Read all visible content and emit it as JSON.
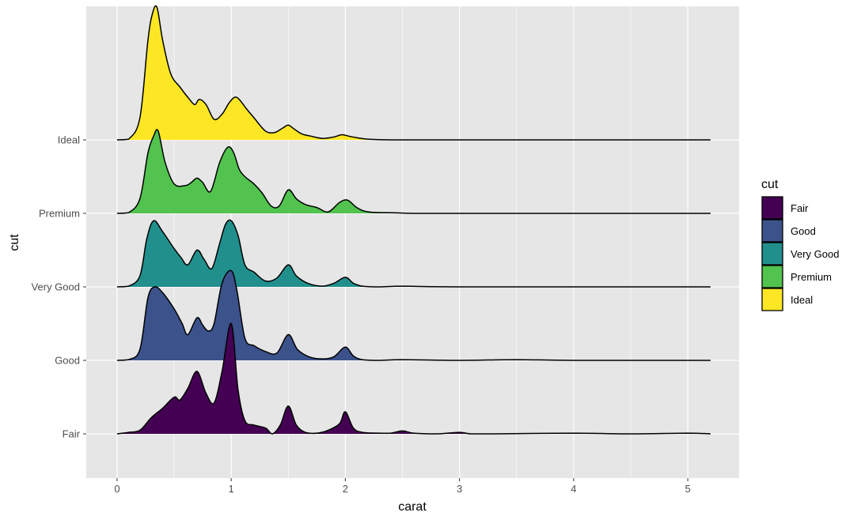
{
  "chart_data": {
    "type": "ridgeline",
    "title": "",
    "xlabel": "carat",
    "ylabel": "cut",
    "xlim": [
      -0.27,
      5.45
    ],
    "x_ticks": [
      0,
      1,
      2,
      3,
      4,
      5
    ],
    "x_tick_labels": [
      "0",
      "1",
      "2",
      "3",
      "4",
      "5"
    ],
    "categories": [
      "Fair",
      "Good",
      "Very Good",
      "Premium",
      "Ideal"
    ],
    "grid": true,
    "panel_background": "#e6e6e6",
    "grid_color": "#ffffff",
    "outline_color": "#000000",
    "legend": {
      "title": "cut",
      "position": "right",
      "entries": [
        "Fair",
        "Good",
        "Very Good",
        "Premium",
        "Ideal"
      ]
    },
    "series": [
      {
        "name": "Fair",
        "color": "#440154",
        "x": [
          0.0,
          0.1,
          0.2,
          0.3,
          0.4,
          0.5,
          0.55,
          0.62,
          0.7,
          0.78,
          0.85,
          0.92,
          1.0,
          1.06,
          1.12,
          1.2,
          1.3,
          1.36,
          1.43,
          1.5,
          1.57,
          1.65,
          1.75,
          1.85,
          1.95,
          2.0,
          2.07,
          2.15,
          2.3,
          2.4,
          2.5,
          2.6,
          2.8,
          3.0,
          3.1,
          3.3,
          4.0,
          4.5,
          5.0,
          5.2
        ],
        "density": [
          0.0,
          0.02,
          0.05,
          0.22,
          0.35,
          0.5,
          0.46,
          0.62,
          0.85,
          0.55,
          0.42,
          0.85,
          1.5,
          0.6,
          0.18,
          0.12,
          0.08,
          0.0,
          0.12,
          0.38,
          0.12,
          0.02,
          0.01,
          0.05,
          0.14,
          0.3,
          0.08,
          0.02,
          0.01,
          0.01,
          0.04,
          0.01,
          0.0,
          0.02,
          0.0,
          0.0,
          0.01,
          0.0,
          0.01,
          0.0
        ]
      },
      {
        "name": "Good",
        "color": "#3b528b",
        "x": [
          0.0,
          0.1,
          0.2,
          0.27,
          0.33,
          0.4,
          0.5,
          0.57,
          0.62,
          0.7,
          0.75,
          0.8,
          0.85,
          0.92,
          1.0,
          1.05,
          1.12,
          1.2,
          1.3,
          1.4,
          1.5,
          1.58,
          1.68,
          1.8,
          1.9,
          2.0,
          2.07,
          2.15,
          2.3,
          2.5,
          3.0,
          3.5,
          4.0,
          5.2
        ],
        "density": [
          0.0,
          0.01,
          0.15,
          0.85,
          1.0,
          0.92,
          0.7,
          0.5,
          0.35,
          0.58,
          0.48,
          0.4,
          0.5,
          1.05,
          1.22,
          0.95,
          0.3,
          0.2,
          0.12,
          0.1,
          0.35,
          0.15,
          0.05,
          0.02,
          0.05,
          0.18,
          0.06,
          0.01,
          0.0,
          0.01,
          0.0,
          0.01,
          0.0,
          0.0
        ]
      },
      {
        "name": "Very Good",
        "color": "#21908d",
        "x": [
          0.0,
          0.1,
          0.2,
          0.26,
          0.32,
          0.4,
          0.5,
          0.56,
          0.62,
          0.7,
          0.76,
          0.83,
          0.9,
          0.95,
          1.0,
          1.06,
          1.12,
          1.2,
          1.3,
          1.4,
          1.5,
          1.57,
          1.67,
          1.8,
          1.9,
          2.0,
          2.07,
          2.15,
          2.3,
          2.5,
          3.0,
          5.2
        ],
        "density": [
          0.0,
          0.01,
          0.15,
          0.65,
          0.9,
          0.75,
          0.52,
          0.4,
          0.3,
          0.5,
          0.38,
          0.25,
          0.6,
          0.85,
          0.9,
          0.7,
          0.3,
          0.2,
          0.08,
          0.12,
          0.3,
          0.15,
          0.05,
          0.01,
          0.05,
          0.13,
          0.05,
          0.01,
          0.0,
          0.01,
          0.0,
          0.0
        ]
      },
      {
        "name": "Premium",
        "color": "#51c34e",
        "x": [
          0.0,
          0.1,
          0.2,
          0.27,
          0.32,
          0.36,
          0.42,
          0.5,
          0.6,
          0.65,
          0.7,
          0.75,
          0.82,
          0.9,
          0.97,
          1.02,
          1.07,
          1.12,
          1.2,
          1.27,
          1.35,
          1.42,
          1.5,
          1.57,
          1.65,
          1.75,
          1.85,
          1.95,
          2.02,
          2.1,
          2.2,
          2.4,
          2.6,
          3.0,
          5.2
        ],
        "density": [
          0.0,
          0.01,
          0.2,
          0.82,
          1.05,
          1.12,
          0.7,
          0.4,
          0.38,
          0.42,
          0.48,
          0.42,
          0.3,
          0.7,
          0.9,
          0.83,
          0.6,
          0.5,
          0.4,
          0.28,
          0.1,
          0.1,
          0.32,
          0.2,
          0.12,
          0.08,
          0.02,
          0.15,
          0.18,
          0.08,
          0.02,
          0.01,
          0.0,
          0.0,
          0.0
        ]
      },
      {
        "name": "Ideal",
        "color": "#fde725",
        "x": [
          0.0,
          0.1,
          0.2,
          0.27,
          0.31,
          0.35,
          0.4,
          0.47,
          0.55,
          0.62,
          0.68,
          0.72,
          0.78,
          0.85,
          0.92,
          0.98,
          1.03,
          1.07,
          1.13,
          1.2,
          1.3,
          1.38,
          1.45,
          1.5,
          1.55,
          1.62,
          1.7,
          1.8,
          1.9,
          1.97,
          2.03,
          2.1,
          2.2,
          2.4,
          2.6,
          3.0,
          5.2
        ],
        "density": [
          0.0,
          0.01,
          0.3,
          1.35,
          1.72,
          1.8,
          1.35,
          0.9,
          0.72,
          0.58,
          0.48,
          0.55,
          0.48,
          0.28,
          0.35,
          0.5,
          0.58,
          0.55,
          0.43,
          0.3,
          0.12,
          0.1,
          0.16,
          0.2,
          0.15,
          0.08,
          0.05,
          0.02,
          0.04,
          0.07,
          0.05,
          0.03,
          0.01,
          0.0,
          0.0,
          0.0,
          0.0
        ]
      }
    ]
  }
}
